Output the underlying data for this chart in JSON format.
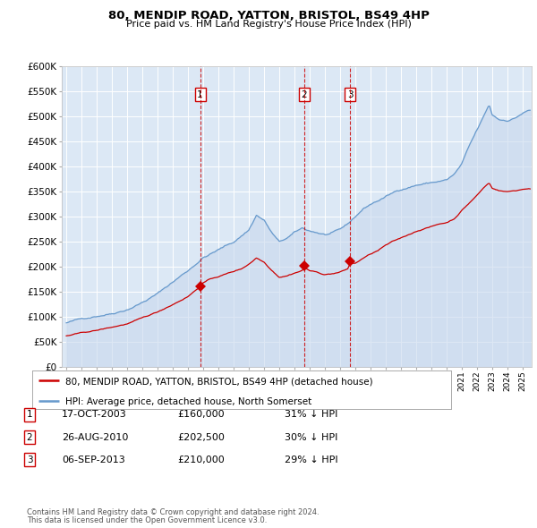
{
  "title": "80, MENDIP ROAD, YATTON, BRISTOL, BS49 4HP",
  "subtitle": "Price paid vs. HM Land Registry's House Price Index (HPI)",
  "fig_bg_color": "#f0f0f0",
  "plot_bg_color": "#dce8f5",
  "grid_color": "#ffffff",
  "hpi_color": "#6699cc",
  "hpi_fill_color": "#c8d8ee",
  "price_color": "#cc0000",
  "dashed_line_color": "#cc0000",
  "ylim": [
    0,
    600000
  ],
  "yticks": [
    0,
    50000,
    100000,
    150000,
    200000,
    250000,
    300000,
    350000,
    400000,
    450000,
    500000,
    550000,
    600000
  ],
  "ytick_labels": [
    "£0",
    "£50K",
    "£100K",
    "£150K",
    "£200K",
    "£250K",
    "£300K",
    "£350K",
    "£400K",
    "£450K",
    "£500K",
    "£550K",
    "£600K"
  ],
  "sale_dates": [
    2003.8,
    2010.65,
    2013.67
  ],
  "sale_prices": [
    160000,
    202500,
    210000
  ],
  "sale_labels": [
    "1",
    "2",
    "3"
  ],
  "sale_info": [
    {
      "label": "1",
      "date": "17-OCT-2003",
      "price": "£160,000",
      "hpi": "31% ↓ HPI"
    },
    {
      "label": "2",
      "date": "26-AUG-2010",
      "price": "£202,500",
      "hpi": "30% ↓ HPI"
    },
    {
      "label": "3",
      "date": "06-SEP-2013",
      "price": "£210,000",
      "hpi": "29% ↓ HPI"
    }
  ],
  "legend_entries": [
    "80, MENDIP ROAD, YATTON, BRISTOL, BS49 4HP (detached house)",
    "HPI: Average price, detached house, North Somerset"
  ],
  "footer_lines": [
    "Contains HM Land Registry data © Crown copyright and database right 2024.",
    "This data is licensed under the Open Government Licence v3.0."
  ]
}
